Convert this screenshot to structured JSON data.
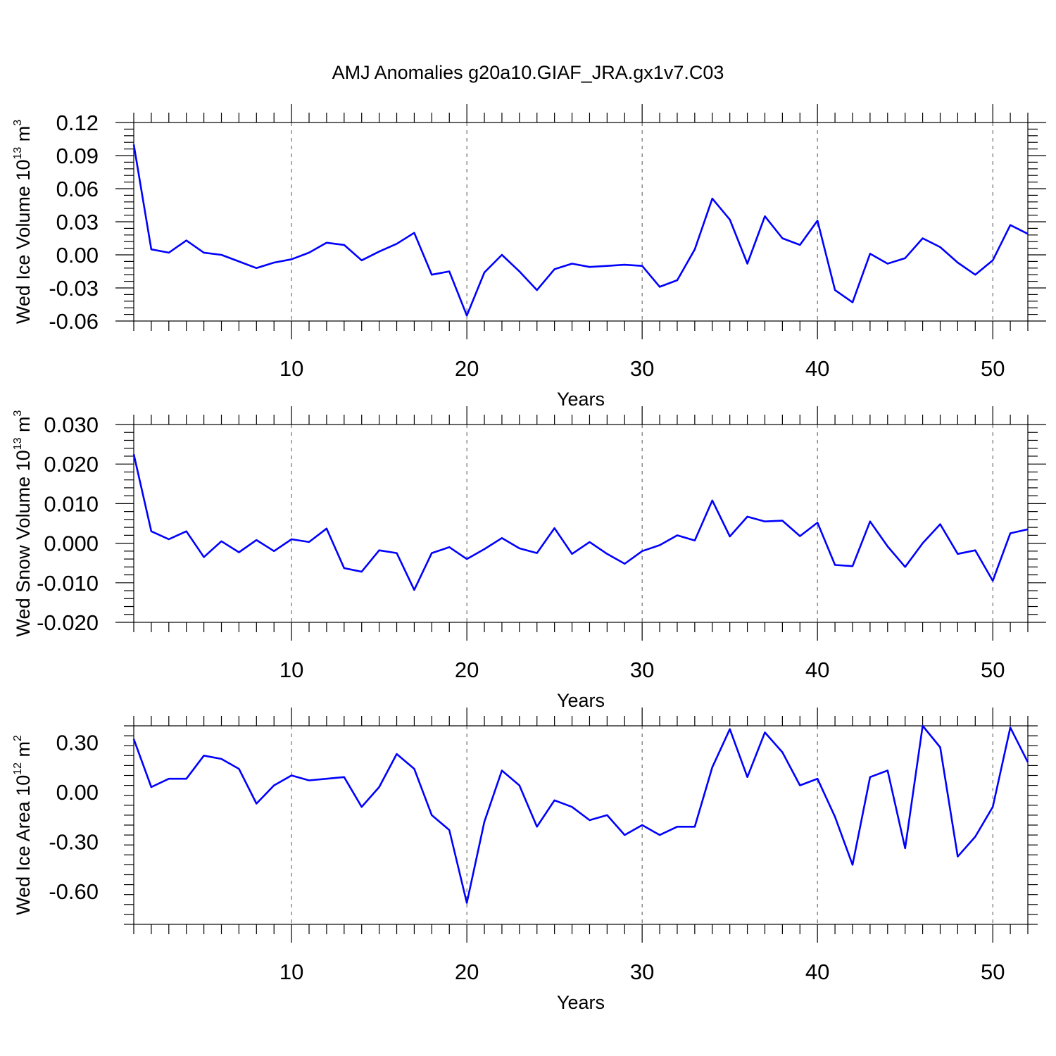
{
  "title": "AMJ Anomalies g20a10.GIAF_JRA.gx1v7.C03",
  "colors": {
    "series": "#0000ff",
    "axis": "#000000",
    "grid": "#555555"
  },
  "chart_data": [
    {
      "type": "line",
      "title": "",
      "ylabel": {
        "main": "Wed Ice Volume 10",
        "exp": "13",
        "unit": " m",
        "unit_exp": "3"
      },
      "xlabel": "Years",
      "xlim": [
        1,
        52
      ],
      "ylim": [
        -0.06,
        0.12
      ],
      "xticks": [
        10,
        20,
        30,
        40,
        50
      ],
      "yticks": [
        -0.06,
        -0.03,
        0.0,
        0.03,
        0.06,
        0.09,
        0.12
      ],
      "ytick_labels": [
        "-0.06",
        "-0.03",
        "0.00",
        "0.03",
        "0.06",
        "0.09",
        "0.12"
      ],
      "grid": "vertical dashed at major x ticks",
      "x": [
        1,
        2,
        3,
        4,
        5,
        6,
        7,
        8,
        9,
        10,
        11,
        12,
        13,
        14,
        15,
        16,
        17,
        18,
        19,
        20,
        21,
        22,
        23,
        24,
        25,
        26,
        27,
        28,
        29,
        30,
        31,
        32,
        33,
        34,
        35,
        36,
        37,
        38,
        39,
        40,
        41,
        42,
        43,
        44,
        45,
        46,
        47,
        48,
        49,
        50,
        51,
        52
      ],
      "series": [
        {
          "values": [
            0.1,
            0.005,
            0.002,
            0.013,
            0.002,
            0.0,
            -0.006,
            -0.012,
            -0.007,
            -0.004,
            0.002,
            0.011,
            0.009,
            -0.005,
            0.003,
            0.01,
            0.02,
            -0.018,
            -0.015,
            -0.055,
            -0.016,
            0.0,
            -0.015,
            -0.032,
            -0.013,
            -0.008,
            -0.011,
            -0.01,
            -0.009,
            -0.01,
            -0.029,
            -0.023,
            0.005,
            0.051,
            0.032,
            -0.008,
            0.035,
            0.015,
            0.009,
            0.031,
            -0.032,
            -0.043,
            0.001,
            -0.008,
            -0.003,
            0.015,
            0.007,
            -0.007,
            -0.018,
            -0.005,
            0.027,
            0.019
          ]
        }
      ]
    },
    {
      "type": "line",
      "title": "",
      "ylabel": {
        "main": "Wed Snow Volume 10",
        "exp": "13",
        "unit": " m",
        "unit_exp": "3"
      },
      "xlabel": "Years",
      "xlim": [
        1,
        52
      ],
      "ylim": [
        -0.02,
        0.03
      ],
      "xticks": [
        10,
        20,
        30,
        40,
        50
      ],
      "yticks": [
        -0.02,
        -0.01,
        0.0,
        0.01,
        0.02,
        0.03
      ],
      "ytick_labels": [
        "-0.020",
        "-0.010",
        "0.000",
        "0.010",
        "0.020",
        "0.030"
      ],
      "grid": "vertical dashed at major x ticks",
      "x": [
        1,
        2,
        3,
        4,
        5,
        6,
        7,
        8,
        9,
        10,
        11,
        12,
        13,
        14,
        15,
        16,
        17,
        18,
        19,
        20,
        21,
        22,
        23,
        24,
        25,
        26,
        27,
        28,
        29,
        30,
        31,
        32,
        33,
        34,
        35,
        36,
        37,
        38,
        39,
        40,
        41,
        42,
        43,
        44,
        45,
        46,
        47,
        48,
        49,
        50,
        51,
        52
      ],
      "series": [
        {
          "values": [
            0.0225,
            0.003,
            0.001,
            0.003,
            -0.0035,
            0.0005,
            -0.0023,
            0.0008,
            -0.002,
            0.001,
            0.0003,
            0.0037,
            -0.0063,
            -0.0072,
            -0.0018,
            -0.0025,
            -0.0118,
            -0.0025,
            -0.001,
            -0.004,
            -0.0015,
            0.0013,
            -0.0013,
            -0.0025,
            0.0038,
            -0.0027,
            0.0003,
            -0.0027,
            -0.0052,
            -0.002,
            -0.0005,
            0.002,
            0.0007,
            0.0108,
            0.0017,
            0.0067,
            0.0055,
            0.0057,
            0.0018,
            0.0052,
            -0.0055,
            -0.0058,
            0.0055,
            -0.0008,
            -0.006,
            0.0,
            0.0048,
            -0.0027,
            -0.0018,
            -0.0095,
            0.0025,
            0.0035
          ]
        }
      ]
    },
    {
      "type": "line",
      "title": "",
      "ylabel": {
        "main": "Wed Ice Area 10",
        "exp": "12",
        "unit": " m",
        "unit_exp": "2"
      },
      "xlabel": "Years",
      "xlim": [
        1,
        52
      ],
      "ylim": [
        -0.8,
        0.4
      ],
      "xticks": [
        10,
        20,
        30,
        40,
        50
      ],
      "yticks": [
        -0.6,
        -0.3,
        0.0,
        0.3
      ],
      "ytick_labels": [
        "-0.60",
        "-0.30",
        "0.00",
        "0.30"
      ],
      "grid": "vertical dashed at major x ticks",
      "x": [
        1,
        2,
        3,
        4,
        5,
        6,
        7,
        8,
        9,
        10,
        11,
        12,
        13,
        14,
        15,
        16,
        17,
        18,
        19,
        20,
        21,
        22,
        23,
        24,
        25,
        26,
        27,
        28,
        29,
        30,
        31,
        32,
        33,
        34,
        35,
        36,
        37,
        38,
        39,
        40,
        41,
        42,
        43,
        44,
        45,
        46,
        47,
        48,
        49,
        50,
        51,
        52
      ],
      "series": [
        {
          "values": [
            0.32,
            0.03,
            0.08,
            0.08,
            0.22,
            0.2,
            0.14,
            -0.07,
            0.04,
            0.1,
            0.07,
            0.08,
            0.09,
            -0.09,
            0.03,
            0.23,
            0.14,
            -0.14,
            -0.23,
            -0.67,
            -0.18,
            0.13,
            0.04,
            -0.21,
            -0.05,
            -0.09,
            -0.17,
            -0.14,
            -0.26,
            -0.2,
            -0.26,
            -0.21,
            -0.21,
            0.15,
            0.38,
            0.09,
            0.36,
            0.24,
            0.04,
            0.08,
            -0.15,
            -0.44,
            0.09,
            0.13,
            -0.34,
            0.4,
            0.27,
            -0.39,
            -0.27,
            -0.09,
            0.39,
            0.18
          ]
        }
      ]
    }
  ]
}
